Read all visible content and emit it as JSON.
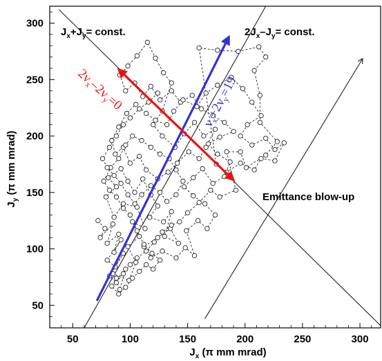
{
  "chart_data": {
    "type": "scatter",
    "xlabel": "J",
    "xlabel_sub": "x",
    "xlabel_unit": " (π mm mrad)",
    "ylabel": "J",
    "ylabel_sub": "y",
    "ylabel_unit": " (π mm mrad)",
    "xlim": [
      30,
      318
    ],
    "ylim": [
      30,
      315
    ],
    "xticks": [
      50,
      100,
      150,
      200,
      250,
      300
    ],
    "yticks": [
      50,
      100,
      150,
      200,
      250,
      300
    ],
    "grid": false,
    "colors": {
      "trajectory": "#222222",
      "blue_arrow": "#3333cc",
      "red_arrow": "#ee1111",
      "lines": "#222222"
    },
    "series": [
      {
        "marker": "circle",
        "linestyle": "dashed",
        "points": [
          [
            72,
            125
          ],
          [
            78,
            118
          ],
          [
            74,
            110
          ],
          [
            85,
            122
          ],
          [
            80,
            105
          ],
          [
            90,
            113
          ],
          [
            86,
            97
          ],
          [
            92,
            108
          ],
          [
            80,
            90
          ],
          [
            87,
            84
          ],
          [
            94,
            96
          ],
          [
            82,
            76
          ],
          [
            88,
            70
          ],
          [
            96,
            82
          ],
          [
            91,
            64
          ],
          [
            85,
            78
          ],
          [
            99,
            72
          ],
          [
            105,
            88
          ],
          [
            98,
            102
          ],
          [
            108,
            111
          ],
          [
            102,
            124
          ],
          [
            113,
            118
          ],
          [
            106,
            137
          ],
          [
            94,
            140
          ],
          [
            86,
            128
          ],
          [
            79,
            146
          ],
          [
            88,
            155
          ],
          [
            81,
            163
          ],
          [
            92,
            171
          ],
          [
            98,
            160
          ],
          [
            104,
            150
          ],
          [
            111,
            162
          ],
          [
            118,
            148
          ],
          [
            124,
            138
          ],
          [
            117,
            128
          ],
          [
            129,
            124
          ],
          [
            136,
            133
          ],
          [
            130,
            111
          ],
          [
            142,
            105
          ],
          [
            135,
            118
          ],
          [
            124,
            110
          ],
          [
            112,
            102
          ],
          [
            118,
            92
          ],
          [
            128,
            98
          ],
          [
            140,
            92
          ],
          [
            148,
            101
          ],
          [
            156,
            94
          ],
          [
            149,
            116
          ],
          [
            159,
            125
          ],
          [
            167,
            118
          ],
          [
            174,
            130
          ],
          [
            165,
            140
          ],
          [
            155,
            147
          ],
          [
            147,
            155
          ],
          [
            155,
            163
          ],
          [
            163,
            171
          ],
          [
            172,
            158
          ],
          [
            182,
            164
          ],
          [
            187,
            177
          ],
          [
            176,
            184
          ],
          [
            168,
            193
          ],
          [
            178,
            199
          ],
          [
            190,
            204
          ],
          [
            182,
            212
          ],
          [
            172,
            218
          ],
          [
            162,
            224
          ],
          [
            154,
            236
          ],
          [
            144,
            230
          ],
          [
            136,
            240
          ],
          [
            126,
            232
          ],
          [
            118,
            244
          ],
          [
            111,
            235
          ],
          [
            104,
            247
          ],
          [
            96,
            240
          ],
          [
            91,
            254
          ],
          [
            98,
            262
          ],
          [
            106,
            271
          ],
          [
            115,
            283
          ],
          [
            122,
            269
          ],
          [
            129,
            256
          ],
          [
            136,
            247
          ],
          [
            128,
            222
          ],
          [
            120,
            210
          ],
          [
            128,
            200
          ],
          [
            139,
            190
          ],
          [
            147,
            202
          ],
          [
            156,
            212
          ],
          [
            164,
            200
          ],
          [
            174,
            206
          ],
          [
            166,
            190
          ],
          [
            160,
            180
          ],
          [
            151,
            186
          ],
          [
            141,
            176
          ],
          [
            133,
            168
          ],
          [
            124,
            162
          ],
          [
            114,
            170
          ],
          [
            108,
            182
          ],
          [
            100,
            176
          ],
          [
            94,
            190
          ],
          [
            87,
            184
          ],
          [
            84,
            196
          ],
          [
            90,
            208
          ],
          [
            97,
            220
          ],
          [
            105,
            228
          ],
          [
            114,
            220
          ],
          [
            122,
            214
          ],
          [
            132,
            210
          ],
          [
            138,
            222
          ],
          [
            146,
            232
          ],
          [
            158,
            226
          ],
          [
            166,
            238
          ],
          [
            176,
            245
          ],
          [
            188,
            252
          ],
          [
            198,
            242
          ],
          [
            206,
            230
          ],
          [
            214,
            218
          ],
          [
            202,
            210
          ],
          [
            196,
            200
          ],
          [
            206,
            192
          ],
          [
            218,
            198
          ],
          [
            226,
            188
          ],
          [
            234,
            194
          ],
          [
            226,
            178
          ],
          [
            214,
            180
          ],
          [
            208,
            170
          ],
          [
            196,
            176
          ],
          [
            184,
            168
          ],
          [
            175,
            175
          ],
          [
            160,
            278
          ],
          [
            176,
            276
          ],
          [
            194,
            275
          ],
          [
            212,
            279
          ],
          [
            218,
            270
          ],
          [
            208,
            258
          ],
          [
            213,
            236
          ],
          [
            213,
            212
          ],
          [
            228,
            195
          ],
          [
            218,
            183
          ],
          [
            201,
            172
          ],
          [
            196,
            186
          ],
          [
            184,
            186
          ],
          [
            192,
            152
          ],
          [
            178,
            146
          ],
          [
            170,
            152
          ],
          [
            160,
            141
          ],
          [
            150,
            132
          ],
          [
            143,
            124
          ],
          [
            136,
            121
          ],
          [
            128,
            115
          ],
          [
            121,
            106
          ],
          [
            114,
            98
          ],
          [
            106,
            92
          ],
          [
            100,
            86
          ],
          [
            94,
            78
          ],
          [
            88,
            74
          ],
          [
            84,
            67
          ],
          [
            90,
            60
          ],
          [
            96,
            66
          ],
          [
            102,
            74
          ],
          [
            108,
            80
          ],
          [
            114,
            86
          ],
          [
            120,
            82
          ],
          [
            126,
            90
          ],
          [
            119,
            96
          ],
          [
            112,
            104
          ],
          [
            106,
            116
          ],
          [
            100,
            130
          ],
          [
            94,
            136
          ],
          [
            88,
            146
          ],
          [
            82,
            152
          ],
          [
            77,
            160
          ],
          [
            83,
            172
          ],
          [
            90,
            180
          ],
          [
            96,
            192
          ],
          [
            102,
            200
          ],
          [
            110,
            196
          ],
          [
            118,
            190
          ],
          [
            126,
            184
          ],
          [
            134,
            180
          ],
          [
            140,
            170
          ],
          [
            146,
            160
          ],
          [
            140,
            148
          ],
          [
            132,
            142
          ],
          [
            126,
            150
          ],
          [
            118,
            156
          ],
          [
            110,
            148
          ],
          [
            104,
            140
          ],
          [
            98,
            148
          ],
          [
            92,
            158
          ],
          [
            86,
            165
          ],
          [
            80,
            172
          ],
          [
            76,
            180
          ],
          [
            82,
            190
          ],
          [
            88,
            200
          ],
          [
            94,
            210
          ],
          [
            100,
            216
          ],
          [
            108,
            224
          ],
          [
            116,
            230
          ],
          [
            124,
            238
          ]
        ]
      }
    ],
    "annotations": {
      "top_left_label": {
        "main1": "J",
        "sub1": "x",
        "mid": "+J",
        "sub2": "y",
        "tail": "= const."
      },
      "top_right_label": {
        "main1": "2J",
        "sub1": "x",
        "mid": "–J",
        "sub2": "y",
        "tail": "= const."
      },
      "emittance_label": "Emittance blow-up",
      "red_label": {
        "a": "2ν",
        "sub1": "x",
        "b": "–2ν",
        "sub2": "y",
        "c": "=0"
      },
      "blue_label": {
        "a": "ν",
        "sub1": "x",
        "b": "+2ν",
        "sub2": "y",
        "c": "=19"
      }
    }
  }
}
